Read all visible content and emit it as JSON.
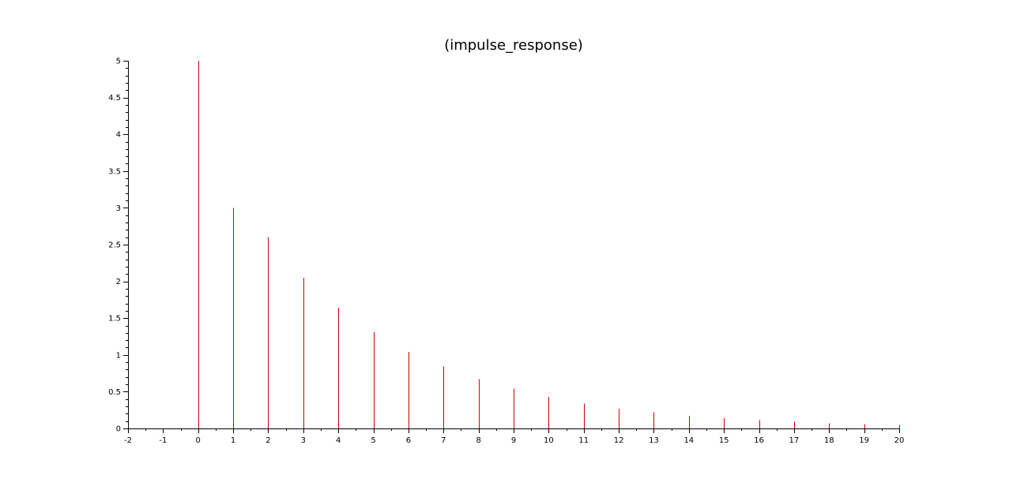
{
  "chart_data": {
    "type": "stem",
    "title": "(impulse_response)",
    "xlabel": "",
    "ylabel": "",
    "xlim": [
      -2,
      20
    ],
    "ylim": [
      0,
      5
    ],
    "x_ticks": [
      -2,
      -1,
      0,
      1,
      2,
      3,
      4,
      5,
      6,
      7,
      8,
      9,
      10,
      11,
      12,
      13,
      14,
      15,
      16,
      17,
      18,
      19,
      20
    ],
    "y_ticks": [
      0,
      0.5,
      1,
      1.5,
      2,
      2.5,
      3,
      3.5,
      4,
      4.5,
      5
    ],
    "grid": false,
    "series": [
      {
        "color": "#cc0000",
        "x": [
          0,
          1,
          2,
          3,
          4,
          5,
          6,
          7,
          8,
          9,
          10,
          11,
          12,
          13,
          14,
          15,
          16,
          17,
          18,
          19,
          20
        ],
        "values": [
          5,
          3,
          2.6,
          2.05,
          1.64,
          1.31,
          1.04,
          0.84,
          0.67,
          0.54,
          0.43,
          0.34,
          0.27,
          0.22,
          0.17,
          0.14,
          0.11,
          0.09,
          0.07,
          0.06,
          0.05
        ]
      }
    ]
  }
}
